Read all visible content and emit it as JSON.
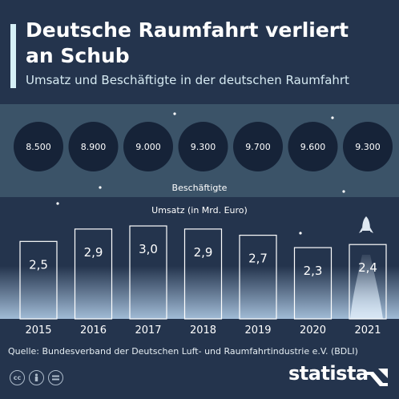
{
  "header": {
    "title": "Deutsche Raumfahrt verliert an Schub",
    "subtitle": "Umsatz und Beschäftigte in der deutschen Raumfahrt"
  },
  "chart_data": [
    {
      "type": "bubble-row",
      "label": "Beschäftigte",
      "categories": [
        "2015",
        "2016",
        "2017",
        "2018",
        "2019",
        "2020",
        "2021"
      ],
      "value_labels": [
        "8.500",
        "8.900",
        "9.000",
        "9.300",
        "9.700",
        "9.600",
        "9.300"
      ],
      "values": [
        8500,
        8900,
        9000,
        9300,
        9700,
        9600,
        9300
      ]
    },
    {
      "type": "bar",
      "label": "Umsatz (in Mrd. Euro)",
      "categories": [
        "2015",
        "2016",
        "2017",
        "2018",
        "2019",
        "2020",
        "2021"
      ],
      "value_labels": [
        "2,5",
        "2,9",
        "3,0",
        "2,9",
        "2,7",
        "2,3",
        "2,4"
      ],
      "values": [
        2.5,
        2.9,
        3.0,
        2.9,
        2.7,
        2.3,
        2.4
      ],
      "ylim": [
        0,
        3.0
      ],
      "grid": false
    }
  ],
  "footer": {
    "source": "Quelle: Bundesverband der Deutschen Luft- und Raumfahrtindustrie e.V. (BDLI)",
    "brand": "statista"
  },
  "colors": {
    "background": "#24344d",
    "band": "#3b5368",
    "bubble": "#162338",
    "bar_stroke": "#ffffff",
    "glow": "#b7d3ee"
  },
  "icons": [
    "cc-icon",
    "person-icon",
    "equals-icon",
    "rocket-icon"
  ]
}
